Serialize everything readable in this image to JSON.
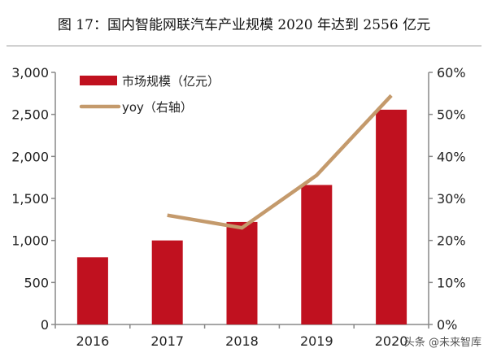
{
  "title": "图 17：国内智能网联汽车产业规模 2020 年达到 2556 亿元",
  "watermark": "头条 @未来智库",
  "chart_data": {
    "type": "bar+line",
    "categories": [
      "2016",
      "2017",
      "2018",
      "2019",
      "2020"
    ],
    "series": [
      {
        "name": "市场规模（亿元）",
        "type": "bar",
        "axis": "left",
        "color": "#c0111f",
        "values": [
          800,
          1000,
          1220,
          1660,
          2556
        ]
      },
      {
        "name": "yoy（右轴）",
        "type": "line",
        "axis": "right",
        "color": "#c49a6c",
        "values": [
          null,
          26,
          23,
          35.5,
          54.5
        ]
      }
    ],
    "left_axis": {
      "ylim": [
        0,
        3000
      ],
      "ticks": [
        "0",
        "500",
        "1,000",
        "1,500",
        "2,000",
        "2,500",
        "3,000"
      ]
    },
    "right_axis": {
      "ylim": [
        0,
        60
      ],
      "ticks": [
        "0%",
        "10%",
        "20%",
        "30%",
        "40%",
        "50%",
        "60%"
      ]
    },
    "grid": false,
    "legend": "top-left"
  }
}
